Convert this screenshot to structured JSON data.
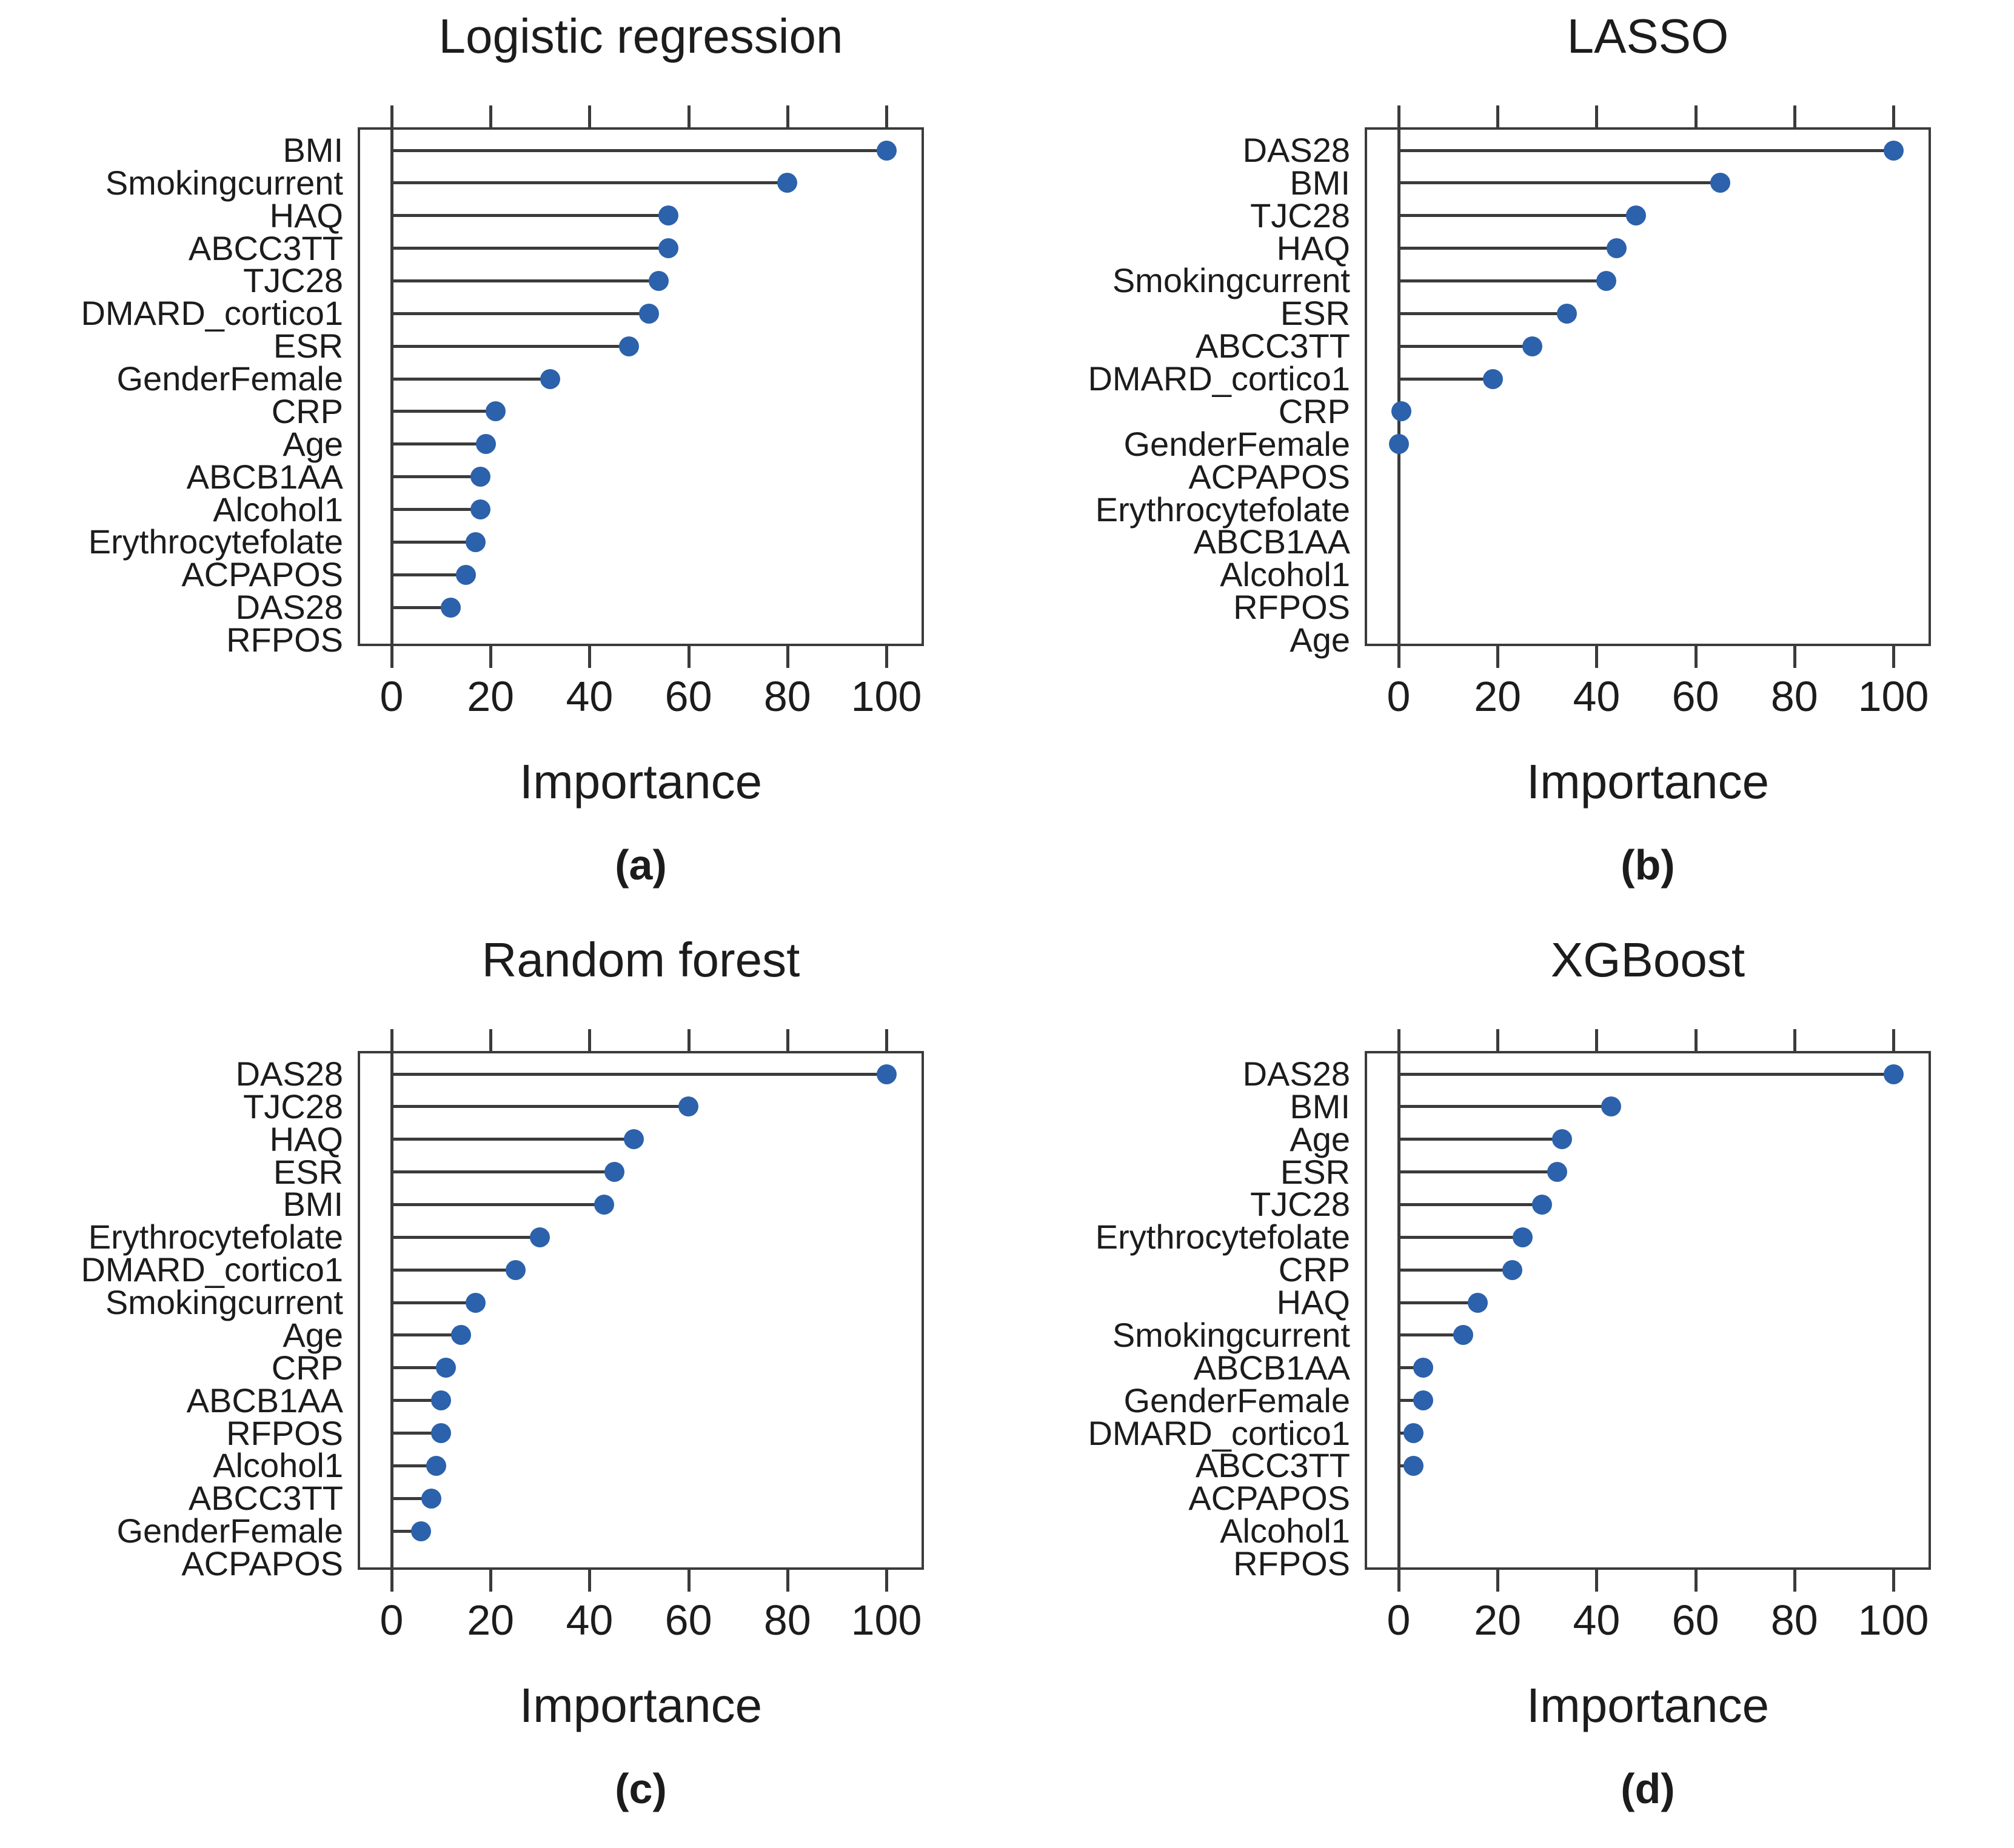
{
  "colors": {
    "dot_blue": "#2c61ab",
    "axis_dark": "#3b3b3b"
  },
  "chart_data": [
    {
      "type": "lollipop",
      "title": "Logistic regression",
      "caption": "(a)",
      "xlabel": "Importance",
      "xlim": [
        0,
        100
      ],
      "xticks": [
        0,
        20,
        40,
        60,
        80,
        100
      ],
      "grid": false,
      "points": [
        {
          "label": "BMI",
          "value": 100,
          "dot": true
        },
        {
          "label": "Smokingcurrent",
          "value": 80,
          "dot": true
        },
        {
          "label": "HAQ",
          "value": 56,
          "dot": true
        },
        {
          "label": "ABCC3TT",
          "value": 56,
          "dot": true
        },
        {
          "label": "TJC28",
          "value": 54,
          "dot": true
        },
        {
          "label": "DMARD_cortico1",
          "value": 52,
          "dot": true
        },
        {
          "label": "ESR",
          "value": 48,
          "dot": true
        },
        {
          "label": "GenderFemale",
          "value": 32,
          "dot": true
        },
        {
          "label": "CRP",
          "value": 21,
          "dot": true
        },
        {
          "label": "Age",
          "value": 19,
          "dot": true
        },
        {
          "label": "ABCB1AA",
          "value": 18,
          "dot": true
        },
        {
          "label": "Alcohol1",
          "value": 18,
          "dot": true
        },
        {
          "label": "Erythrocytefolate",
          "value": 17,
          "dot": true
        },
        {
          "label": "ACPAPOS",
          "value": 15,
          "dot": true
        },
        {
          "label": "DAS28",
          "value": 12,
          "dot": true
        },
        {
          "label": "RFPOS",
          "value": 0,
          "dot": false
        }
      ]
    },
    {
      "type": "lollipop",
      "title": "LASSO",
      "caption": "(b)",
      "xlabel": "Importance",
      "xlim": [
        0,
        100
      ],
      "xticks": [
        0,
        20,
        40,
        60,
        80,
        100
      ],
      "grid": false,
      "points": [
        {
          "label": "DAS28",
          "value": 100,
          "dot": true
        },
        {
          "label": "BMI",
          "value": 65,
          "dot": true
        },
        {
          "label": "TJC28",
          "value": 48,
          "dot": true
        },
        {
          "label": "HAQ",
          "value": 44,
          "dot": true
        },
        {
          "label": "Smokingcurrent",
          "value": 42,
          "dot": true
        },
        {
          "label": "ESR",
          "value": 34,
          "dot": true
        },
        {
          "label": "ABCC3TT",
          "value": 27,
          "dot": true
        },
        {
          "label": "DMARD_cortico1",
          "value": 19,
          "dot": true
        },
        {
          "label": "CRP",
          "value": 0.5,
          "dot": true
        },
        {
          "label": "GenderFemale",
          "value": 0,
          "dot": true
        },
        {
          "label": "ACPAPOS",
          "value": 0,
          "dot": false
        },
        {
          "label": "Erythrocytefolate",
          "value": 0,
          "dot": false
        },
        {
          "label": "ABCB1AA",
          "value": 0,
          "dot": false
        },
        {
          "label": "Alcohol1",
          "value": 0,
          "dot": false
        },
        {
          "label": "RFPOS",
          "value": 0,
          "dot": false
        },
        {
          "label": "Age",
          "value": 0,
          "dot": false
        }
      ]
    },
    {
      "type": "lollipop",
      "title": "Random forest",
      "caption": "(c)",
      "xlabel": "Importance",
      "xlim": [
        0,
        100
      ],
      "xticks": [
        0,
        20,
        40,
        60,
        80,
        100
      ],
      "grid": false,
      "points": [
        {
          "label": "DAS28",
          "value": 100,
          "dot": true
        },
        {
          "label": "TJC28",
          "value": 60,
          "dot": true
        },
        {
          "label": "HAQ",
          "value": 49,
          "dot": true
        },
        {
          "label": "ESR",
          "value": 45,
          "dot": true
        },
        {
          "label": "BMI",
          "value": 43,
          "dot": true
        },
        {
          "label": "Erythrocytefolate",
          "value": 30,
          "dot": true
        },
        {
          "label": "DMARD_cortico1",
          "value": 25,
          "dot": true
        },
        {
          "label": "Smokingcurrent",
          "value": 17,
          "dot": true
        },
        {
          "label": "Age",
          "value": 14,
          "dot": true
        },
        {
          "label": "CRP",
          "value": 11,
          "dot": true
        },
        {
          "label": "ABCB1AA",
          "value": 10,
          "dot": true
        },
        {
          "label": "RFPOS",
          "value": 10,
          "dot": true
        },
        {
          "label": "Alcohol1",
          "value": 9,
          "dot": true
        },
        {
          "label": "ABCC3TT",
          "value": 8,
          "dot": true
        },
        {
          "label": "GenderFemale",
          "value": 6,
          "dot": true
        },
        {
          "label": "ACPAPOS",
          "value": 0,
          "dot": false
        }
      ]
    },
    {
      "type": "lollipop",
      "title": "XGBoost",
      "caption": "(d)",
      "xlabel": "Importance",
      "xlim": [
        0,
        100
      ],
      "xticks": [
        0,
        20,
        40,
        60,
        80,
        100
      ],
      "grid": false,
      "points": [
        {
          "label": "DAS28",
          "value": 100,
          "dot": true
        },
        {
          "label": "BMI",
          "value": 43,
          "dot": true
        },
        {
          "label": "Age",
          "value": 33,
          "dot": true
        },
        {
          "label": "ESR",
          "value": 32,
          "dot": true
        },
        {
          "label": "TJC28",
          "value": 29,
          "dot": true
        },
        {
          "label": "Erythrocytefolate",
          "value": 25,
          "dot": true
        },
        {
          "label": "CRP",
          "value": 23,
          "dot": true
        },
        {
          "label": "HAQ",
          "value": 16,
          "dot": true
        },
        {
          "label": "Smokingcurrent",
          "value": 13,
          "dot": true
        },
        {
          "label": "ABCB1AA",
          "value": 5,
          "dot": true
        },
        {
          "label": "GenderFemale",
          "value": 5,
          "dot": true
        },
        {
          "label": "DMARD_cortico1",
          "value": 3,
          "dot": true
        },
        {
          "label": "ABCC3TT",
          "value": 3,
          "dot": true
        },
        {
          "label": "ACPAPOS",
          "value": 0,
          "dot": false
        },
        {
          "label": "Alcohol1",
          "value": 0,
          "dot": false
        },
        {
          "label": "RFPOS",
          "value": 0,
          "dot": false
        }
      ]
    }
  ]
}
